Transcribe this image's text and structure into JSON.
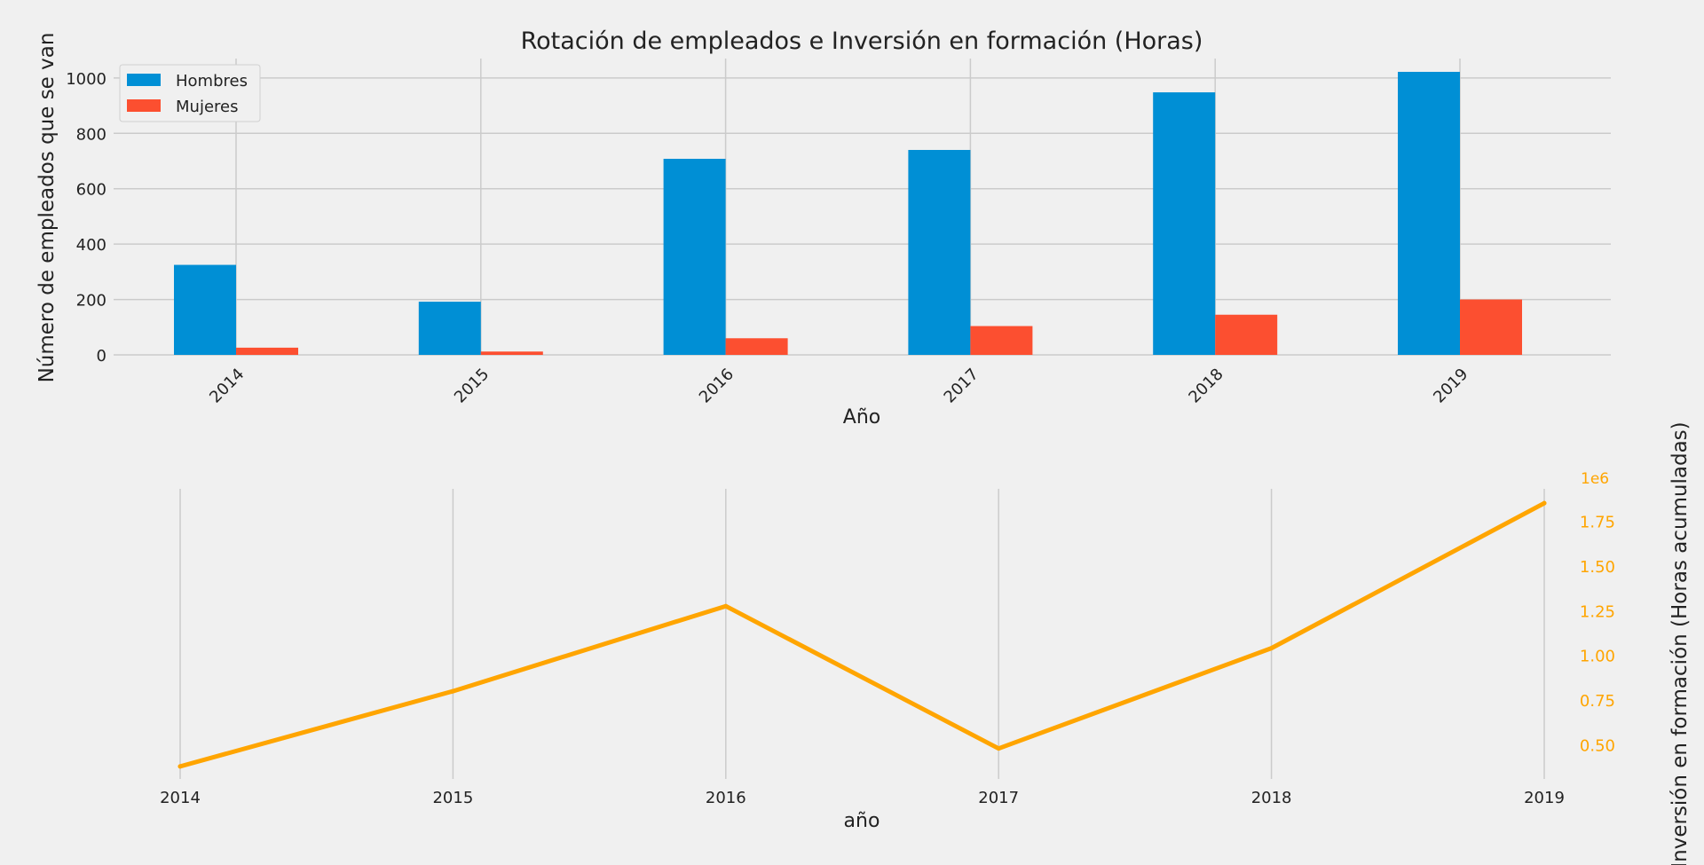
{
  "chart_data": [
    {
      "type": "bar",
      "title": "Rotación de empleados e Inversión en formación (Horas)",
      "xlabel": "Año",
      "ylabel": "Número de empleados que se van",
      "categories": [
        "2014",
        "2015",
        "2016",
        "2017",
        "2018",
        "2019"
      ],
      "series": [
        {
          "name": "Hombres",
          "color": "#008fd5",
          "values": [
            325,
            192,
            708,
            740,
            948,
            1022
          ]
        },
        {
          "name": "Mujeres",
          "color": "#fc4f30",
          "values": [
            26,
            12,
            60,
            104,
            145,
            200
          ]
        }
      ],
      "ylim": [
        0,
        1070
      ],
      "yticks": [
        0,
        200,
        400,
        600,
        800,
        1000
      ],
      "legend": "top-left",
      "grid": true
    },
    {
      "type": "line",
      "xlabel": "año",
      "ylabel": "Inversión en formación (Horas acumuladas)",
      "x": [
        "2014",
        "2015",
        "2016",
        "2017",
        "2018",
        "2019"
      ],
      "series": [
        {
          "color": "#ffa500",
          "values": [
            380000,
            800000,
            1275000,
            480000,
            1040000,
            1850000
          ]
        }
      ],
      "ylim": [
        300000,
        1930000
      ],
      "yticks": [
        0.5,
        0.75,
        1.0,
        1.25,
        1.5,
        1.75
      ],
      "ytick_labels": [
        "0.50",
        "0.75",
        "1.00",
        "1.25",
        "1.50",
        "1.75"
      ],
      "y_offset_label": "1e6",
      "yaxis_side": "right",
      "yaxis_color": "#ffa500",
      "grid": "x-only"
    }
  ]
}
